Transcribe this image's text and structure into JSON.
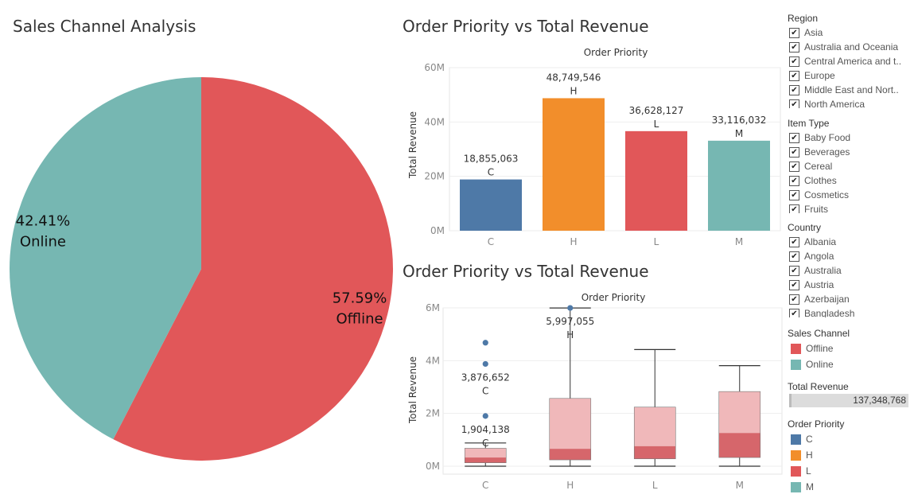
{
  "pie": {
    "title": "Sales Channel Analysis"
  },
  "bar": {
    "title": "Order Priority vs Total Revenue",
    "header": "Order Priority",
    "ylabel": "Total Revenue"
  },
  "box": {
    "title": "Order Priority vs Total Revenue",
    "header": "Order Priority",
    "ylabel": "Total Revenue"
  },
  "filters": {
    "region": {
      "label": "Region",
      "items": [
        "Asia",
        "Australia and Oceania",
        "Central America and t..",
        "Europe",
        "Middle East and Nort..",
        "North America"
      ]
    },
    "item_type": {
      "label": "Item Type",
      "items": [
        "Baby Food",
        "Beverages",
        "Cereal",
        "Clothes",
        "Cosmetics",
        "Fruits"
      ]
    },
    "country": {
      "label": "Country",
      "items": [
        "Albania",
        "Angola",
        "Australia",
        "Austria",
        "Azerbaijan",
        "Bangladesh"
      ]
    },
    "check_glyph": "✔"
  },
  "legends": {
    "sales_channel": {
      "label": "Sales Channel",
      "items": [
        {
          "name": "Offline",
          "color": "#e15759"
        },
        {
          "name": "Online",
          "color": "#76b7b2"
        }
      ]
    },
    "total_revenue": {
      "label": "Total Revenue",
      "value": "137,348,768"
    },
    "order_priority": {
      "label": "Order Priority",
      "items": [
        {
          "name": "C",
          "color": "#4e79a7"
        },
        {
          "name": "H",
          "color": "#f28e2b"
        },
        {
          "name": "L",
          "color": "#e15759"
        },
        {
          "name": "M",
          "color": "#76b7b2"
        }
      ]
    }
  },
  "chart_data": [
    {
      "type": "pie",
      "title": "Sales Channel Analysis",
      "slices": [
        {
          "name": "Offline",
          "value": 57.59,
          "label": "57.59%",
          "color": "#e15759"
        },
        {
          "name": "Online",
          "value": 42.41,
          "label": "42.41%",
          "color": "#76b7b2"
        }
      ]
    },
    {
      "type": "bar",
      "title": "Order Priority vs Total Revenue",
      "header": "Order Priority",
      "ylabel": "Total Revenue",
      "ylim": [
        0,
        60000000
      ],
      "yticks": [
        {
          "value": 0,
          "label": "0M"
        },
        {
          "value": 20000000,
          "label": "20M"
        },
        {
          "value": 40000000,
          "label": "40M"
        },
        {
          "value": 60000000,
          "label": "60M"
        }
      ],
      "categories": [
        "C",
        "H",
        "L",
        "M"
      ],
      "values": [
        18855063,
        48749546,
        36628127,
        33116032
      ],
      "value_labels": [
        "18,855,063",
        "48,749,546",
        "36,628,127",
        "33,116,032"
      ],
      "colors": [
        "#4e79a7",
        "#f28e2b",
        "#e15759",
        "#76b7b2"
      ],
      "grid": true
    },
    {
      "type": "box",
      "title": "Order Priority vs Total Revenue",
      "header": "Order Priority",
      "ylabel": "Total Revenue",
      "ylim": [
        0,
        6000000
      ],
      "yticks": [
        {
          "value": 0,
          "label": "0M"
        },
        {
          "value": 2000000,
          "label": "2M"
        },
        {
          "value": 4000000,
          "label": "4M"
        },
        {
          "value": 6000000,
          "label": "6M"
        }
      ],
      "categories": [
        "C",
        "H",
        "L",
        "M"
      ],
      "boxes": [
        {
          "category": "C",
          "min": 0,
          "q1": 130000,
          "median": 330000,
          "q3": 680000,
          "max": 880000,
          "outliers": [
            1904138,
            3876652,
            4680000
          ]
        },
        {
          "category": "H",
          "min": 0,
          "q1": 240000,
          "median": 660000,
          "q3": 2570000,
          "max": 5997055,
          "outliers": [
            5997055
          ]
        },
        {
          "category": "L",
          "min": 0,
          "q1": 280000,
          "median": 760000,
          "q3": 2240000,
          "max": 4420000,
          "outliers": []
        },
        {
          "category": "M",
          "min": 0,
          "q1": 330000,
          "median": 1260000,
          "q3": 2830000,
          "max": 3810000,
          "outliers": []
        }
      ],
      "point_labels": [
        {
          "category": "C",
          "value": 1904138,
          "text": "1,904,138",
          "sub": "C"
        },
        {
          "category": "C",
          "value": 3876652,
          "text": "3,876,652",
          "sub": "C"
        },
        {
          "category": "H",
          "value": 5997055,
          "text": "5,997,055",
          "sub": "H"
        }
      ],
      "colors": {
        "box_upper": "#f0b8ba",
        "box_lower": "#d6666b",
        "outlier": "#4e79a7"
      },
      "grid": true
    }
  ]
}
